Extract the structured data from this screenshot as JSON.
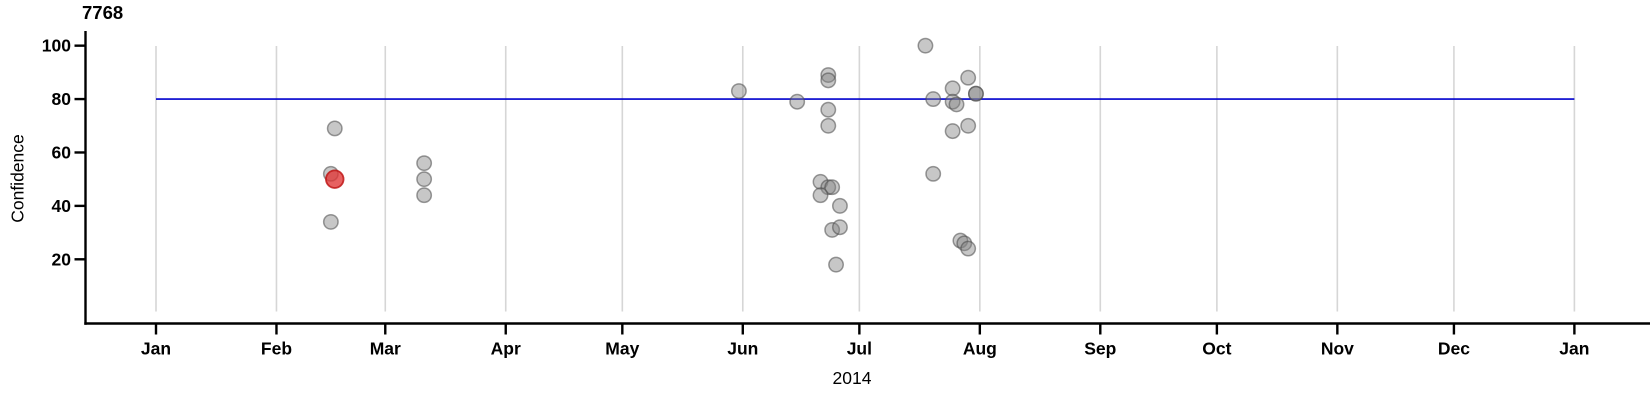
{
  "chart_data": {
    "type": "scatter",
    "title": "7768",
    "xlabel": "2014",
    "ylabel": "Confidence",
    "x_axis": {
      "ticks": [
        "2014-01-01",
        "2014-02-01",
        "2014-03-01",
        "2014-04-01",
        "2014-05-01",
        "2014-06-01",
        "2014-07-01",
        "2014-08-01",
        "2014-09-01",
        "2014-10-01",
        "2014-11-01",
        "2014-12-01",
        "2015-01-01"
      ],
      "tick_labels": [
        "Jan",
        "Feb",
        "Mar",
        "Apr",
        "May",
        "Jun",
        "Jul",
        "Aug",
        "Sep",
        "Oct",
        "Nov",
        "Dec",
        "Jan"
      ],
      "grid": true
    },
    "y_axis": {
      "ticks": [
        20,
        40,
        60,
        80,
        100
      ],
      "range": [
        0,
        100
      ],
      "grid": false
    },
    "reference_line": {
      "confidence": 80,
      "from": "2014-01-01",
      "to": "2015-01-01",
      "color": "#0000cd"
    },
    "points": [
      {
        "date": "2014-02-16",
        "confidence": 69
      },
      {
        "date": "2014-02-15",
        "confidence": 52
      },
      {
        "date": "2014-02-15",
        "confidence": 34
      },
      {
        "date": "2014-03-11",
        "confidence": 56
      },
      {
        "date": "2014-03-11",
        "confidence": 50
      },
      {
        "date": "2014-03-11",
        "confidence": 44
      },
      {
        "date": "2014-05-31",
        "confidence": 83
      },
      {
        "date": "2014-06-15",
        "confidence": 79
      },
      {
        "date": "2014-06-23",
        "confidence": 89
      },
      {
        "date": "2014-06-23",
        "confidence": 87
      },
      {
        "date": "2014-06-23",
        "confidence": 76
      },
      {
        "date": "2014-06-23",
        "confidence": 70
      },
      {
        "date": "2014-06-21",
        "confidence": 49
      },
      {
        "date": "2014-06-23",
        "confidence": 47
      },
      {
        "date": "2014-06-24",
        "confidence": 47
      },
      {
        "date": "2014-06-21",
        "confidence": 44
      },
      {
        "date": "2014-06-26",
        "confidence": 40
      },
      {
        "date": "2014-06-24",
        "confidence": 31
      },
      {
        "date": "2014-06-26",
        "confidence": 32
      },
      {
        "date": "2014-06-25",
        "confidence": 18
      },
      {
        "date": "2014-07-18",
        "confidence": 100
      },
      {
        "date": "2014-07-20",
        "confidence": 80
      },
      {
        "date": "2014-07-20",
        "confidence": 52
      },
      {
        "date": "2014-07-25",
        "confidence": 84
      },
      {
        "date": "2014-07-25",
        "confidence": 79
      },
      {
        "date": "2014-07-26",
        "confidence": 78
      },
      {
        "date": "2014-07-25",
        "confidence": 68
      },
      {
        "date": "2014-07-29",
        "confidence": 88
      },
      {
        "date": "2014-07-29",
        "confidence": 70
      },
      {
        "date": "2014-07-31",
        "confidence": 82
      },
      {
        "date": "2014-07-31",
        "confidence": 82
      },
      {
        "date": "2014-07-27",
        "confidence": 27
      },
      {
        "date": "2014-07-28",
        "confidence": 26
      },
      {
        "date": "2014-07-29",
        "confidence": 24
      }
    ],
    "highlight_point": {
      "date": "2014-02-16",
      "confidence": 50,
      "color": "#e03434"
    },
    "colors": {
      "reference_line": "#0000cd",
      "point_fill": "#828282",
      "point_stroke": "#4a4a4a",
      "highlight_fill": "#e03434",
      "highlight_stroke": "#c01818",
      "gridline": "#d6d6d6",
      "axis": "#000000"
    }
  }
}
